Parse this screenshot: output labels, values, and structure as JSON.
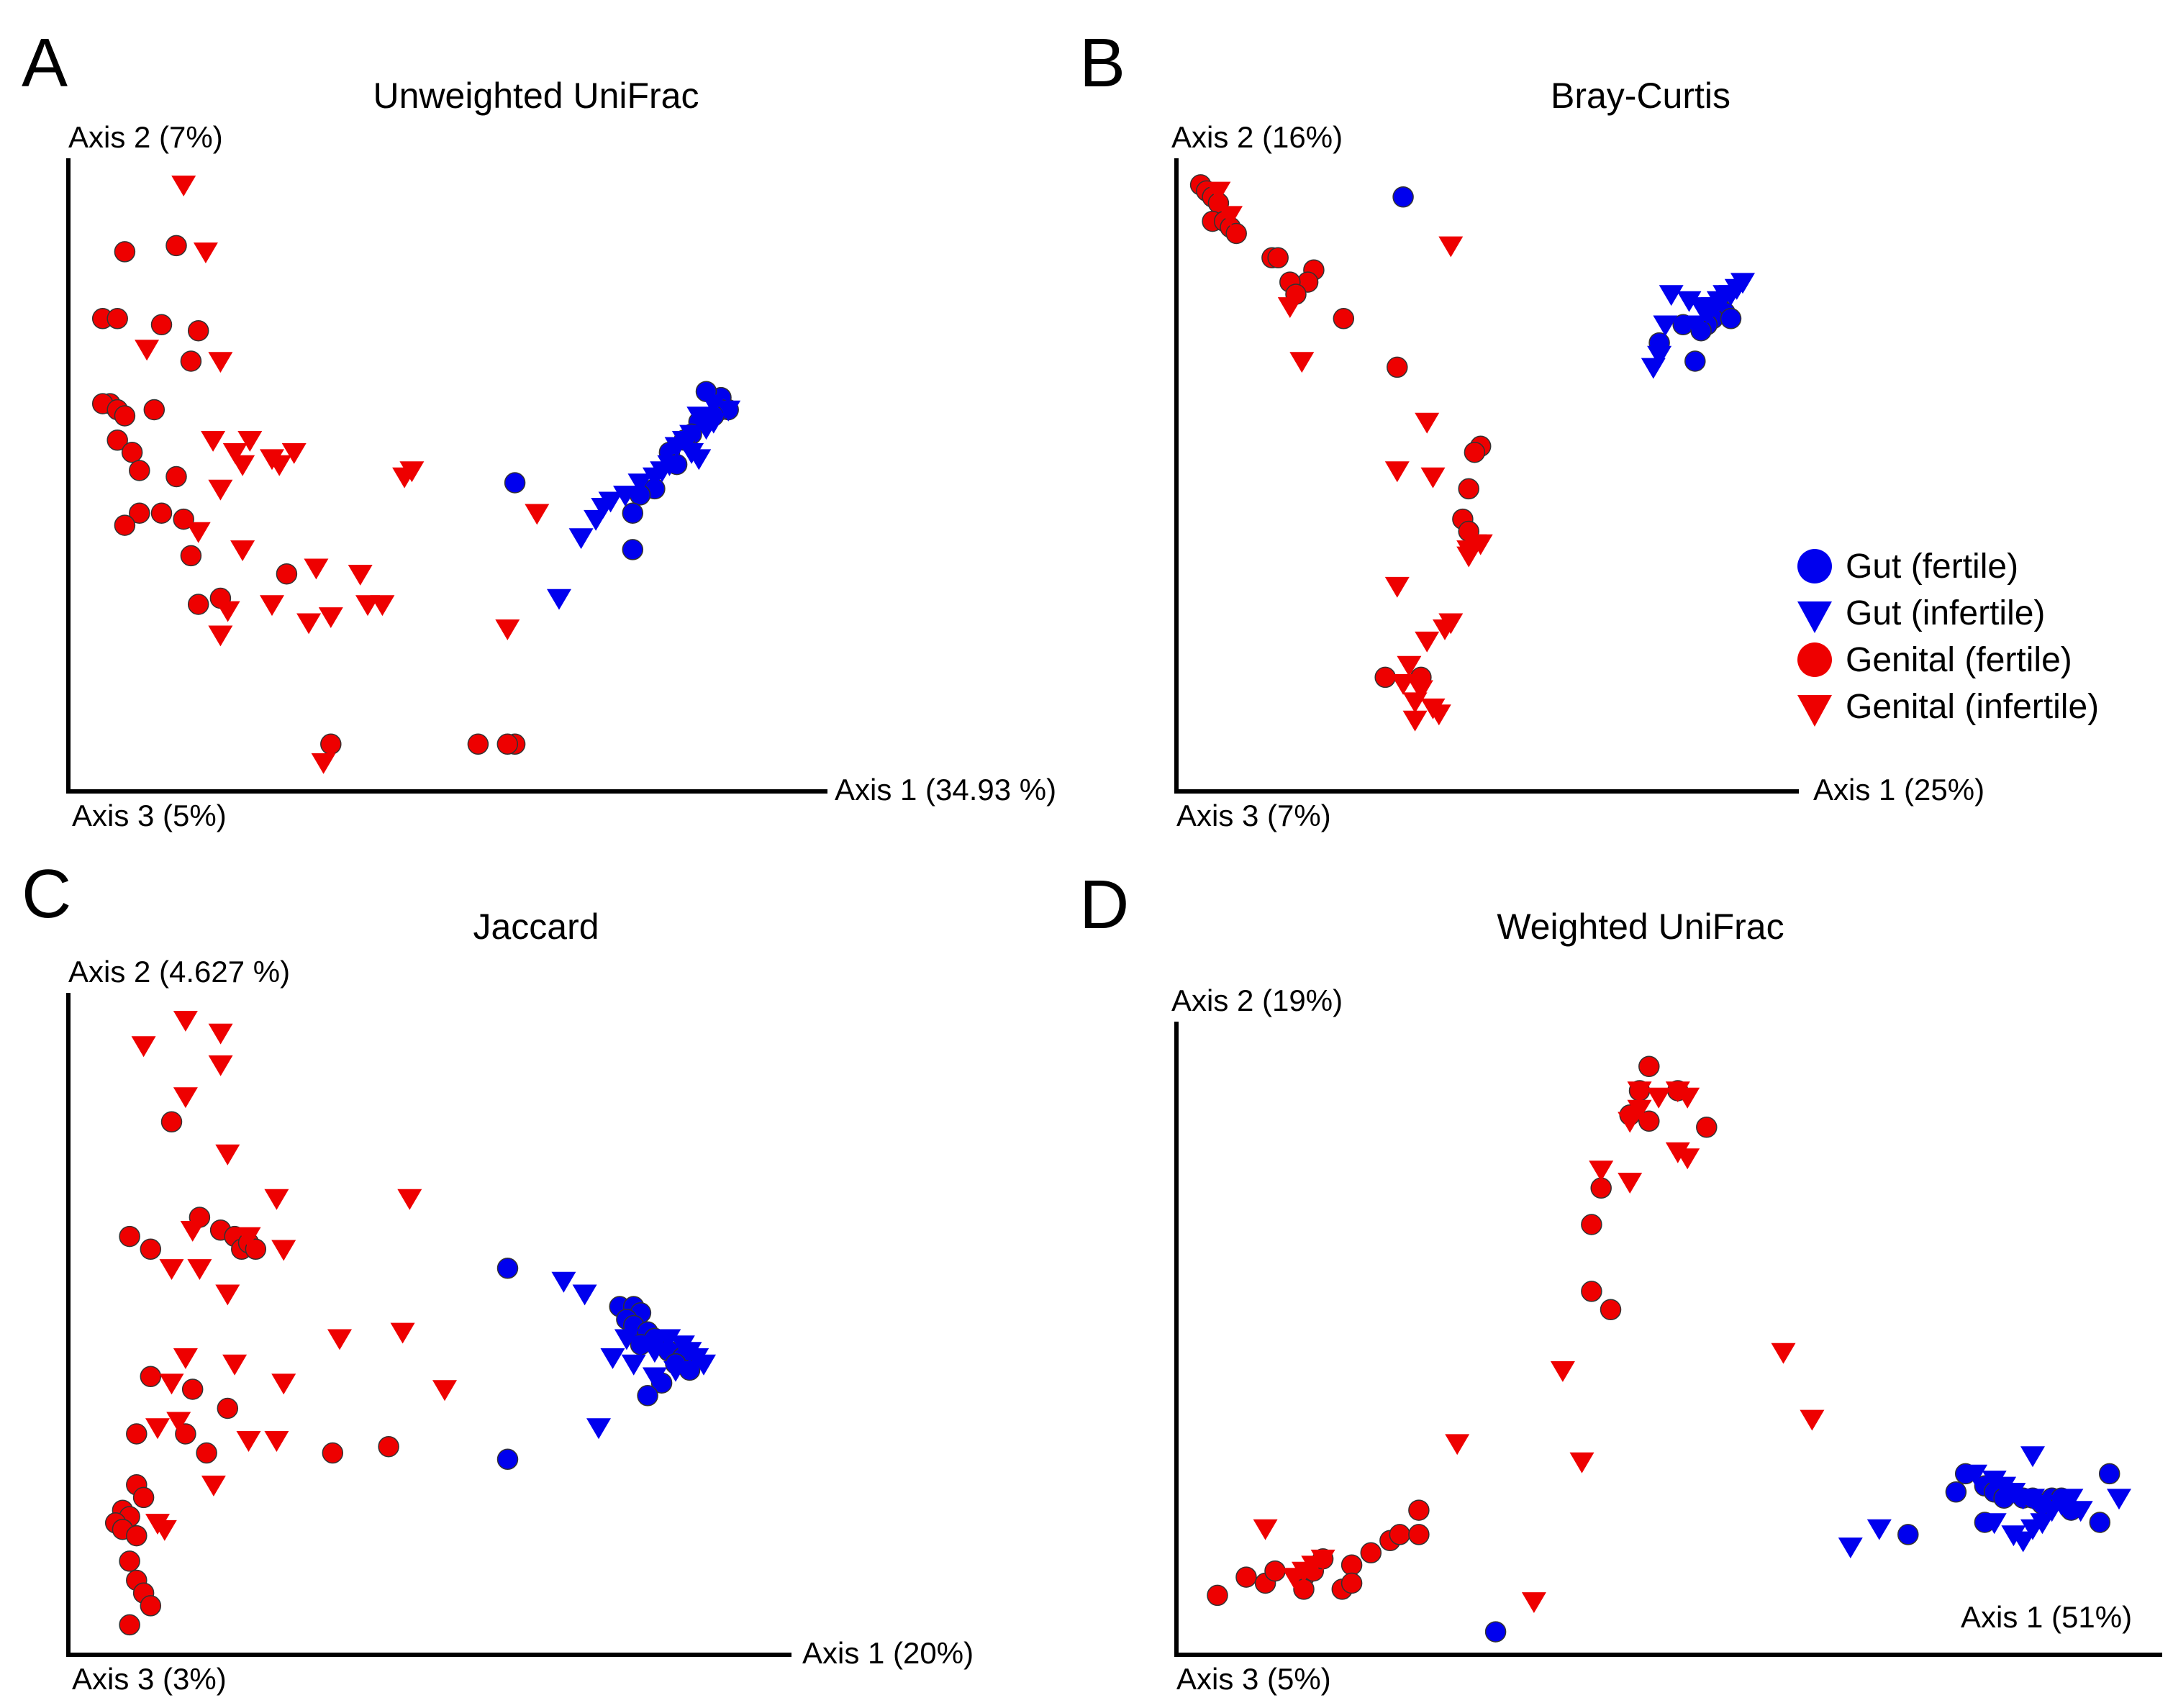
{
  "figure": {
    "legend": {
      "items": [
        {
          "label": "Gut (fertile)",
          "color": "#0000ee",
          "marker": "circle"
        },
        {
          "label": "Gut (infertile)",
          "color": "#0000ee",
          "marker": "triangle-down"
        },
        {
          "label": "Genital (fertile)",
          "color": "#ee0000",
          "marker": "circle"
        },
        {
          "label": "Genital (infertile)",
          "color": "#ee0000",
          "marker": "triangle-down"
        }
      ]
    }
  },
  "chart_data": [
    {
      "panel": "A",
      "type": "scatter",
      "title": "Unweighted UniFrac",
      "xlabel": "Axis 1 (34.93 %)",
      "ylabel": "Axis 2 (7%)",
      "zlabel": "Axis 3 (5%)",
      "xlim": [
        0,
        100
      ],
      "ylim": [
        0,
        100
      ],
      "series": [
        {
          "name": "Gut (fertile)",
          "color": "#0000ee",
          "marker": "circle",
          "x": [
            59,
            88,
            87,
            85,
            87,
            86,
            84,
            83,
            82,
            80,
            81,
            78,
            76,
            75,
            75
          ],
          "y": [
            49,
            61,
            63,
            64,
            61,
            60,
            59,
            57,
            56,
            54,
            52,
            48,
            47,
            44,
            38
          ]
        },
        {
          "name": "Gut (infertile)",
          "color": "#0000ee",
          "marker": "triangle-down",
          "x": [
            86,
            88,
            84,
            85,
            83,
            82,
            81,
            83,
            80,
            79,
            78,
            76,
            74,
            72,
            71,
            70,
            68,
            65,
            86,
            84
          ],
          "y": [
            62,
            61,
            60,
            58,
            57,
            56,
            55,
            54,
            52,
            51,
            50,
            49,
            47,
            46,
            45,
            43,
            40,
            30,
            59,
            53
          ]
        },
        {
          "name": "Genital (fertile)",
          "color": "#ee0000",
          "marker": "circle",
          "x": [
            6,
            13,
            3,
            5,
            11,
            16,
            15,
            4,
            3,
            5,
            6,
            10,
            5,
            7,
            8,
            13,
            8,
            11,
            14,
            6,
            15,
            28,
            16,
            19,
            34,
            59,
            54,
            58
          ],
          "y": [
            87,
            88,
            76,
            76,
            75,
            74,
            69,
            62,
            62,
            61,
            60,
            61,
            56,
            54,
            51,
            50,
            44,
            44,
            43,
            42,
            37,
            34,
            29,
            30,
            6,
            6,
            6,
            6
          ]
        },
        {
          "name": "Genital (infertile)",
          "color": "#ee0000",
          "marker": "triangle-down",
          "x": [
            14,
            17,
            9,
            19,
            18,
            23,
            21,
            26,
            19,
            29,
            22,
            27,
            16,
            22,
            20,
            26,
            44,
            45,
            62,
            58,
            32,
            38,
            39,
            41,
            34,
            31,
            33,
            19
          ],
          "y": [
            98,
            87,
            71,
            69,
            56,
            56,
            54,
            53,
            48,
            54,
            52,
            52,
            41,
            38,
            28,
            29,
            50,
            51,
            44,
            25,
            35,
            34,
            29,
            29,
            27,
            26,
            3,
            24
          ]
        }
      ]
    },
    {
      "panel": "B",
      "type": "scatter",
      "title": "Bray-Curtis",
      "xlabel": "Axis 1 (25%)",
      "ylabel": "Axis 2 (16%)",
      "zlabel": "Axis 3 (7%)",
      "xlim": [
        0,
        100
      ],
      "ylim": [
        0,
        100
      ],
      "series": [
        {
          "name": "Gut (fertile)",
          "color": "#0000ee",
          "marker": "circle",
          "x": [
            36,
            79,
            83,
            88,
            89,
            90,
            88,
            87,
            86,
            91,
            85
          ],
          "y": [
            96,
            72,
            75,
            77,
            78,
            77,
            76,
            75,
            74,
            76,
            69
          ]
        },
        {
          "name": "Gut (infertile)",
          "color": "#0000ee",
          "marker": "triangle-down",
          "x": [
            79,
            81,
            84,
            86,
            87,
            88,
            89,
            90,
            91,
            92,
            93,
            85,
            80,
            78
          ],
          "y": [
            70,
            80,
            79,
            78,
            77,
            78,
            79,
            80,
            80,
            81,
            82,
            75,
            75,
            68
          ]
        },
        {
          "name": "Genital (fertile)",
          "color": "#ee0000",
          "marker": "circle",
          "x": [
            2,
            3,
            4,
            5,
            4,
            6,
            7,
            8,
            14,
            15,
            21,
            20,
            17,
            18,
            26,
            35,
            49,
            48,
            47,
            46,
            47,
            33,
            39
          ],
          "y": [
            98,
            97,
            96,
            95,
            92,
            92,
            91,
            90,
            86,
            86,
            84,
            82,
            82,
            80,
            76,
            68,
            55,
            54,
            48,
            43,
            41,
            17,
            17
          ]
        },
        {
          "name": "Genital (infertile)",
          "color": "#ee0000",
          "marker": "triangle-down",
          "x": [
            5,
            7,
            44,
            17,
            19,
            40,
            35,
            41,
            49,
            48,
            47,
            47,
            35,
            44,
            43,
            40,
            37,
            36,
            38,
            39,
            41,
            42,
            38
          ],
          "y": [
            97,
            93,
            88,
            78,
            69,
            59,
            51,
            50,
            39,
            39,
            38,
            37,
            32,
            26,
            25,
            23,
            19,
            16,
            13,
            15,
            12,
            11,
            10
          ]
        }
      ]
    },
    {
      "panel": "C",
      "type": "scatter",
      "title": "Jaccard",
      "xlabel": "Axis 1 (20%)",
      "ylabel": "Axis 2 (4.627 %)",
      "zlabel": "Axis 3 (3%)",
      "xlim": [
        0,
        100
      ],
      "ylim": [
        0,
        100
      ],
      "series": [
        {
          "name": "Gut (fertile)",
          "color": "#0000ee",
          "marker": "circle",
          "x": [
            61,
            61,
            77,
            79,
            80,
            78,
            79,
            81,
            80,
            82,
            84,
            86,
            85,
            87,
            83,
            81
          ],
          "y": [
            59,
            29,
            53,
            53,
            52,
            51,
            50,
            49,
            47,
            48,
            46,
            45,
            44,
            43,
            41,
            39
          ]
        },
        {
          "name": "Gut (infertile)",
          "color": "#0000ee",
          "marker": "triangle-down",
          "x": [
            69,
            72,
            78,
            80,
            82,
            84,
            86,
            87,
            88,
            89,
            79,
            74,
            76,
            82,
            85
          ],
          "y": [
            57,
            55,
            48,
            47,
            46,
            48,
            47,
            46,
            45,
            44,
            44,
            34,
            45,
            42,
            43
          ]
        },
        {
          "name": "Genital (fertile)",
          "color": "#ee0000",
          "marker": "circle",
          "x": [
            13,
            7,
            10,
            17,
            20,
            22,
            23,
            24,
            25,
            10,
            16,
            21,
            8,
            15,
            18,
            36,
            44,
            8,
            9,
            6,
            7,
            5,
            6,
            8,
            7,
            8,
            9,
            10,
            7
          ],
          "y": [
            82,
            64,
            62,
            67,
            65,
            64,
            62,
            63,
            62,
            42,
            40,
            37,
            33,
            33,
            30,
            30,
            31,
            25,
            23,
            21,
            20,
            19,
            18,
            17,
            13,
            10,
            8,
            6,
            3
          ]
        },
        {
          "name": "Genital (infertile)",
          "color": "#ee0000",
          "marker": "triangle-down",
          "x": [
            15,
            20,
            9,
            20,
            15,
            21,
            28,
            16,
            24,
            29,
            13,
            17,
            21,
            15,
            22,
            29,
            13,
            28,
            14,
            11,
            24,
            19,
            11,
            12,
            37,
            47,
            46,
            52
          ],
          "y": [
            98,
            96,
            94,
            91,
            86,
            77,
            70,
            65,
            64,
            62,
            59,
            59,
            55,
            45,
            44,
            41,
            41,
            32,
            35,
            34,
            32,
            25,
            19,
            18,
            48,
            70,
            49,
            40
          ]
        }
      ]
    },
    {
      "panel": "D",
      "type": "scatter",
      "title": "Weighted UniFrac",
      "xlabel": "Axis 1 (51%)",
      "ylabel": "Axis 2 (19%)",
      "zlabel": "Axis 3 (5%)",
      "xlim": [
        0,
        100
      ],
      "ylim": [
        0,
        100
      ],
      "series": [
        {
          "name": "Gut (fertile)",
          "color": "#0000ee",
          "marker": "circle",
          "x": [
            32,
            75,
            80,
            81,
            83,
            84,
            85,
            87,
            88,
            89,
            90,
            91,
            83,
            92,
            96,
            95
          ],
          "y": [
            2,
            18,
            25,
            28,
            26,
            25,
            24,
            24,
            24,
            23,
            24,
            24,
            20,
            22,
            28,
            20
          ]
        },
        {
          "name": "Gut (infertile)",
          "color": "#0000ee",
          "marker": "triangle-down",
          "x": [
            69,
            72,
            82,
            84,
            85,
            86,
            87,
            88,
            89,
            90,
            91,
            92,
            93,
            84,
            86,
            87,
            88,
            89,
            97,
            88
          ],
          "y": [
            16,
            19,
            28,
            27,
            26,
            25,
            24,
            24,
            23,
            22,
            23,
            24,
            22,
            20,
            18,
            17,
            19,
            20,
            24,
            31
          ]
        },
        {
          "name": "Genital (fertile)",
          "color": "#ee0000",
          "marker": "circle",
          "x": [
            48,
            47,
            46,
            48,
            51,
            54,
            43,
            42,
            42,
            44,
            3,
            6,
            8,
            9,
            12,
            13,
            14,
            17,
            19,
            21,
            22,
            24,
            24,
            12,
            16,
            17
          ],
          "y": [
            95,
            91,
            87,
            86,
            91,
            85,
            75,
            69,
            58,
            55,
            8,
            11,
            10,
            12,
            11,
            12,
            14,
            13,
            15,
            17,
            18,
            18,
            22,
            9,
            9,
            10
          ]
        },
        {
          "name": "Genital (infertile)",
          "color": "#ee0000",
          "marker": "triangle-down",
          "x": [
            47,
            49,
            51,
            52,
            51,
            52,
            47,
            46,
            43,
            46,
            39,
            28,
            41,
            62,
            65,
            8,
            11,
            12,
            13,
            14,
            36
          ],
          "y": [
            91,
            90,
            91,
            90,
            81,
            80,
            88,
            86,
            78,
            76,
            45,
            33,
            30,
            48,
            37,
            19,
            11,
            12,
            13,
            14,
            7
          ]
        }
      ]
    }
  ]
}
